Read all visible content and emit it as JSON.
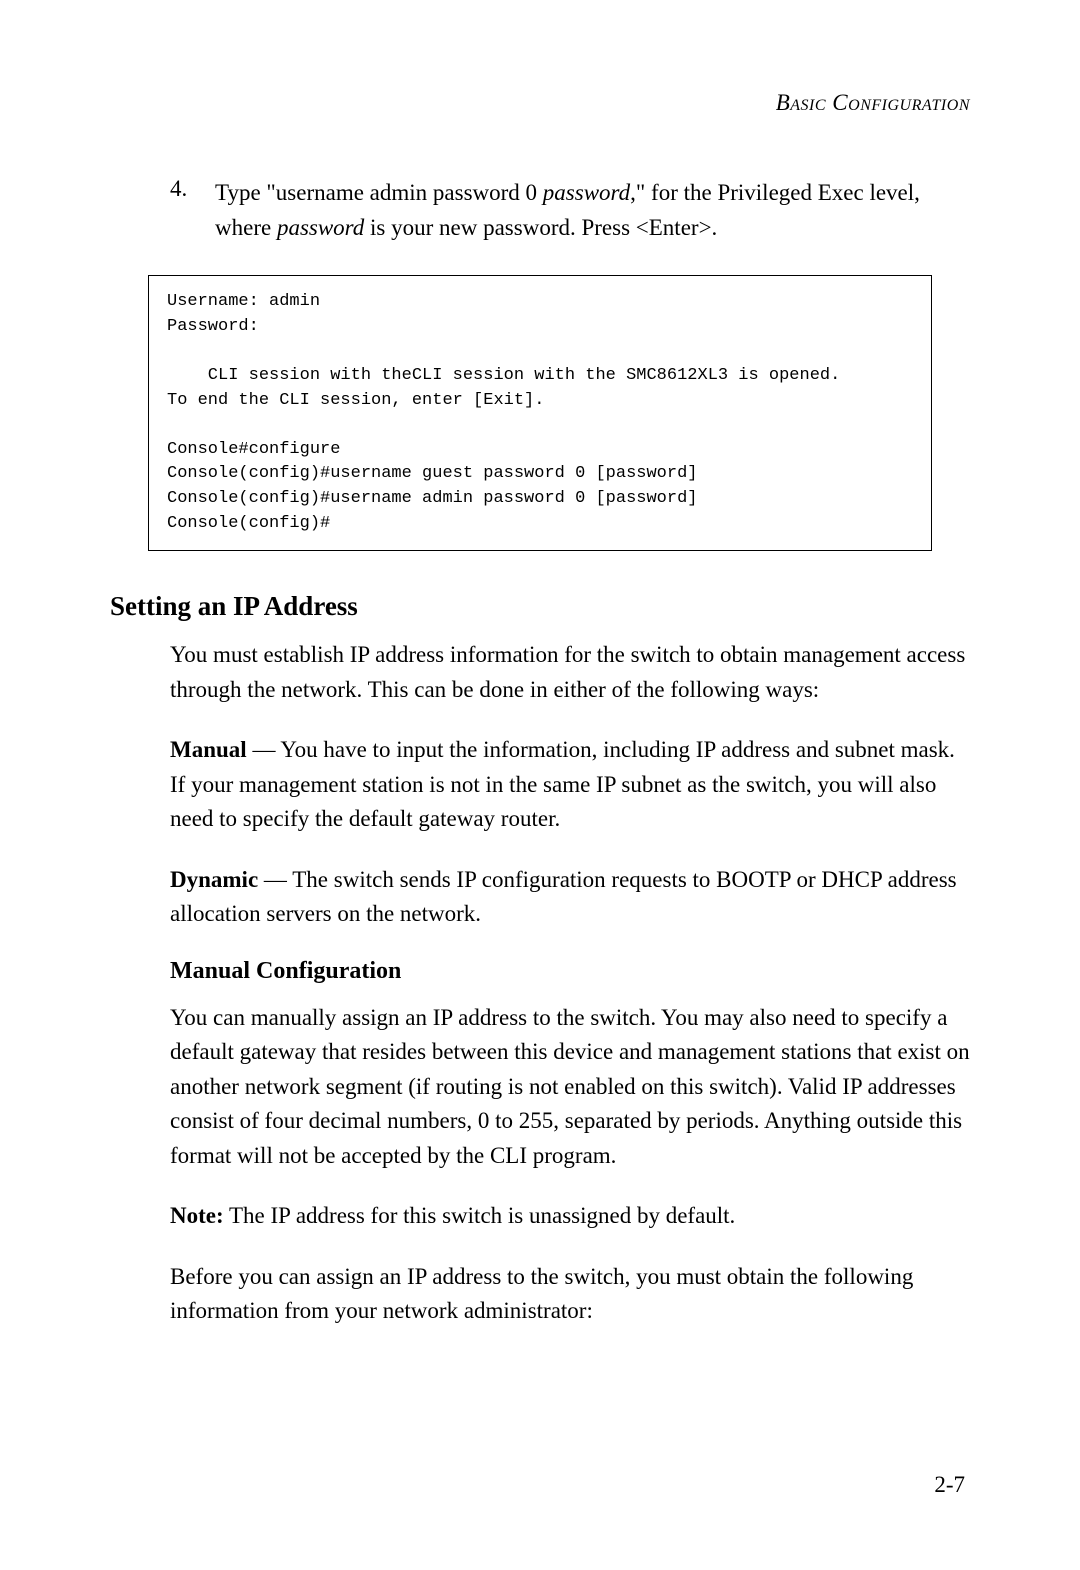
{
  "header": {
    "title": "Basic Configuration"
  },
  "step4": {
    "number": "4.",
    "text_part1": "Type \"username admin password 0 ",
    "text_italic1": "password",
    "text_part2": ",\" for the Privileged Exec level, where ",
    "text_italic2": "password",
    "text_part3": " is your new password. Press <Enter>."
  },
  "codebox": {
    "content": "Username: admin\nPassword:\n\n    CLI session with theCLI session with the SMC8612XL3 is opened.\nTo end the CLI session, enter [Exit].\n\nConsole#configure\nConsole(config)#username guest password 0 [password]\nConsole(config)#username admin password 0 [password]\nConsole(config)#"
  },
  "section": {
    "heading": "Setting an IP Address",
    "intro": "You must establish IP address information for the switch to obtain management access through the network. This can be done in either of the following ways:",
    "manual_label": "Manual",
    "manual_text": " — You have to input the information, including IP address and subnet mask. If your management station is not in the same IP subnet as the switch, you will also need to specify the default gateway router.",
    "dynamic_label": "Dynamic",
    "dynamic_text": " — The switch sends IP configuration requests to BOOTP or DHCP address allocation servers on the network."
  },
  "subsection": {
    "heading": "Manual Configuration",
    "para1": "You can manually assign an IP address to the switch. You may also need to specify a default gateway that resides between this device and management stations that exist on another network segment (if routing is not enabled on this switch). Valid IP addresses consist of four decimal numbers, 0 to 255, separated by periods. Anything outside this format will not be accepted by the CLI program.",
    "note_label": "Note:",
    "note_text": "  The IP address for this switch is unassigned by default.",
    "para2": "Before you can assign an IP address to the switch, you must obtain the following information from your network administrator:"
  },
  "page_number": "2-7"
}
